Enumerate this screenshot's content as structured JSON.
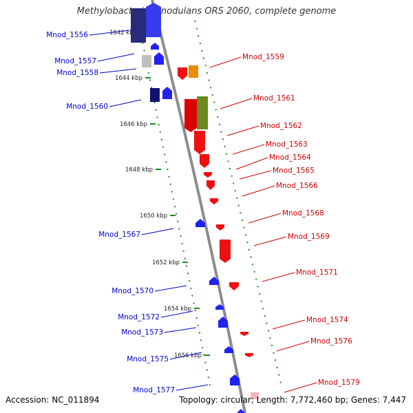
{
  "title": "Methylobacterium nodulans ORS 2060, complete genome",
  "footer": {
    "accession": "Accession: NC_011894",
    "topology": "Topology: circular; Length: 7,772,460 bp; Genes: 7,447"
  },
  "colors": {
    "backbone": "#8c8c8c",
    "ticks": "#1a8a1a",
    "forward_label": "#0000cc",
    "reverse_label": "#cc0000"
  },
  "ticks": [
    {
      "label": "1642 kbp"
    },
    {
      "label": "1644 kbp"
    },
    {
      "label": "1646 kbp"
    },
    {
      "label": "1648 kbp"
    },
    {
      "label": "1650 kbp"
    },
    {
      "label": "1652 kbp"
    },
    {
      "label": "1654 kbp"
    },
    {
      "label": "1656 kbp"
    }
  ],
  "forward_genes": [
    {
      "name": "Mnod_1556"
    },
    {
      "name": "Mnod_1557"
    },
    {
      "name": "Mnod_1558"
    },
    {
      "name": "Mnod_1560"
    },
    {
      "name": "Mnod_1567"
    },
    {
      "name": "Mnod_1570"
    },
    {
      "name": "Mnod_1572"
    },
    {
      "name": "Mnod_1573"
    },
    {
      "name": "Mnod_1575"
    },
    {
      "name": "Mnod_1577"
    }
  ],
  "reverse_genes": [
    {
      "name": "Mnod_1559"
    },
    {
      "name": "Mnod_1561"
    },
    {
      "name": "Mnod_1562"
    },
    {
      "name": "Mnod_1563"
    },
    {
      "name": "Mnod_1564"
    },
    {
      "name": "Mnod_1565"
    },
    {
      "name": "Mnod_1566"
    },
    {
      "name": "Mnod_1568"
    },
    {
      "name": "Mnod_1569"
    },
    {
      "name": "Mnod_1571"
    },
    {
      "name": "Mnod_1574"
    },
    {
      "name": "Mnod_1576"
    },
    {
      "name": "Mnod_1579"
    }
  ]
}
